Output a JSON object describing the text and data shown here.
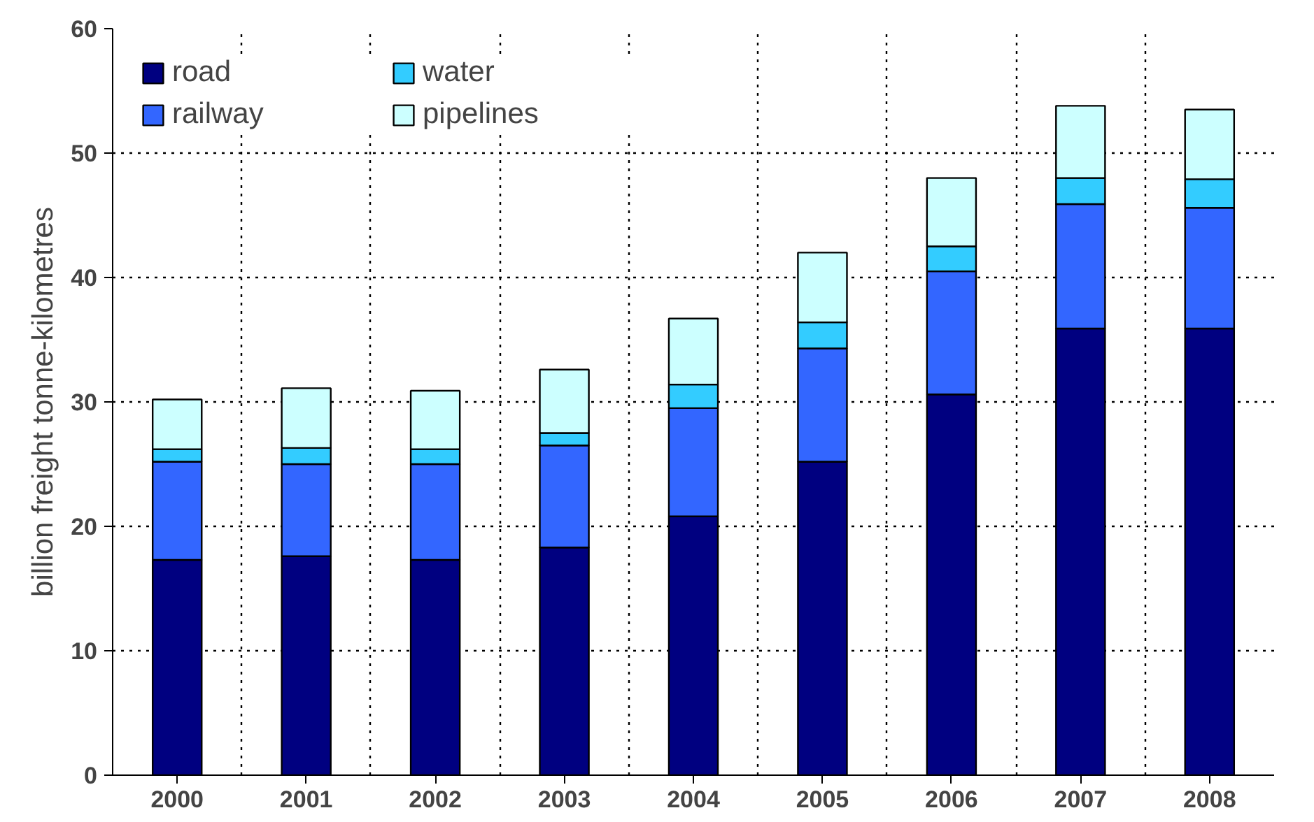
{
  "chart_data": {
    "type": "bar",
    "stacked": true,
    "ylabel": "billion freight tonne-kilometres",
    "categories": [
      "2000",
      "2001",
      "2002",
      "2003",
      "2004",
      "2005",
      "2006",
      "2007",
      "2008"
    ],
    "series": [
      {
        "name": "road",
        "color": "#000080",
        "values": [
          17.3,
          17.6,
          17.3,
          18.3,
          20.8,
          25.2,
          30.6,
          35.9,
          35.9
        ]
      },
      {
        "name": "railway",
        "color": "#3366ff",
        "values": [
          7.9,
          7.4,
          7.7,
          8.2,
          8.7,
          9.1,
          9.9,
          10.0,
          9.7
        ]
      },
      {
        "name": "water",
        "color": "#33ccff",
        "values": [
          1.0,
          1.3,
          1.2,
          1.0,
          1.9,
          2.1,
          2.0,
          2.1,
          2.3
        ]
      },
      {
        "name": "pipelines",
        "color": "#ccffff",
        "values": [
          4.0,
          4.8,
          4.7,
          5.1,
          5.3,
          5.6,
          5.5,
          5.8,
          5.6
        ]
      }
    ],
    "ylim": [
      0,
      60
    ],
    "yticks": [
      0,
      10,
      20,
      30,
      40,
      50,
      60
    ],
    "grid": true,
    "legend": "top left"
  }
}
